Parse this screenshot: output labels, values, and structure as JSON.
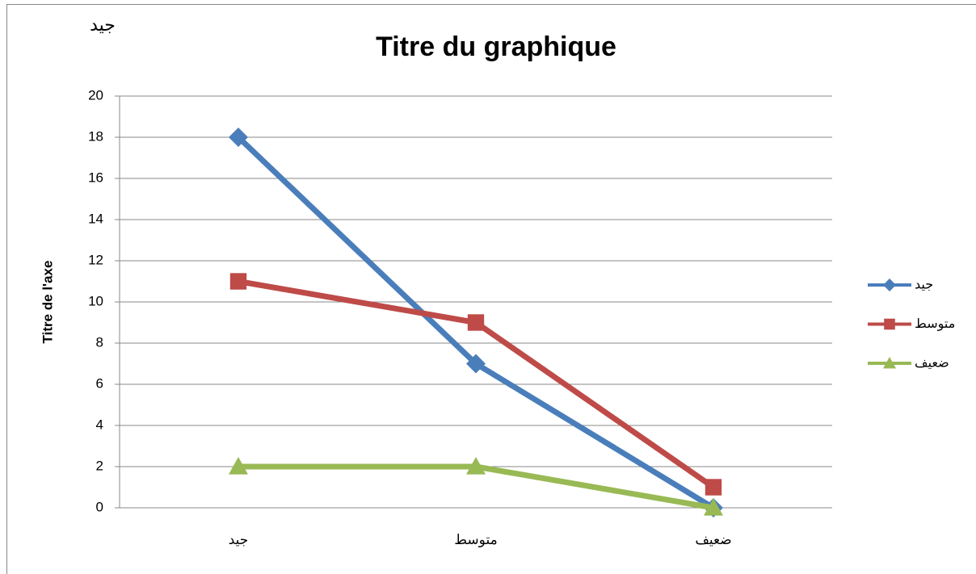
{
  "chart_data": {
    "type": "line",
    "title": "Titre du graphique",
    "annotation": "جيد",
    "ylabel": "Titre de l'axe",
    "categories": [
      "جيد",
      "متوسط",
      "ضعيف"
    ],
    "series": [
      {
        "name": "جيد",
        "color": "#4a7ebb",
        "marker": "diamond",
        "values": [
          18,
          7,
          0
        ]
      },
      {
        "name": "متوسط",
        "color": "#be4b48",
        "marker": "square",
        "values": [
          11,
          9,
          1
        ]
      },
      {
        "name": "ضعيف",
        "color": "#98b954",
        "marker": "triangle",
        "values": [
          2,
          2,
          0
        ]
      }
    ],
    "ylim": [
      0,
      20
    ],
    "yticks": [
      0,
      2,
      4,
      6,
      8,
      10,
      12,
      14,
      16,
      18,
      20
    ],
    "grid": true,
    "legend": "right"
  }
}
